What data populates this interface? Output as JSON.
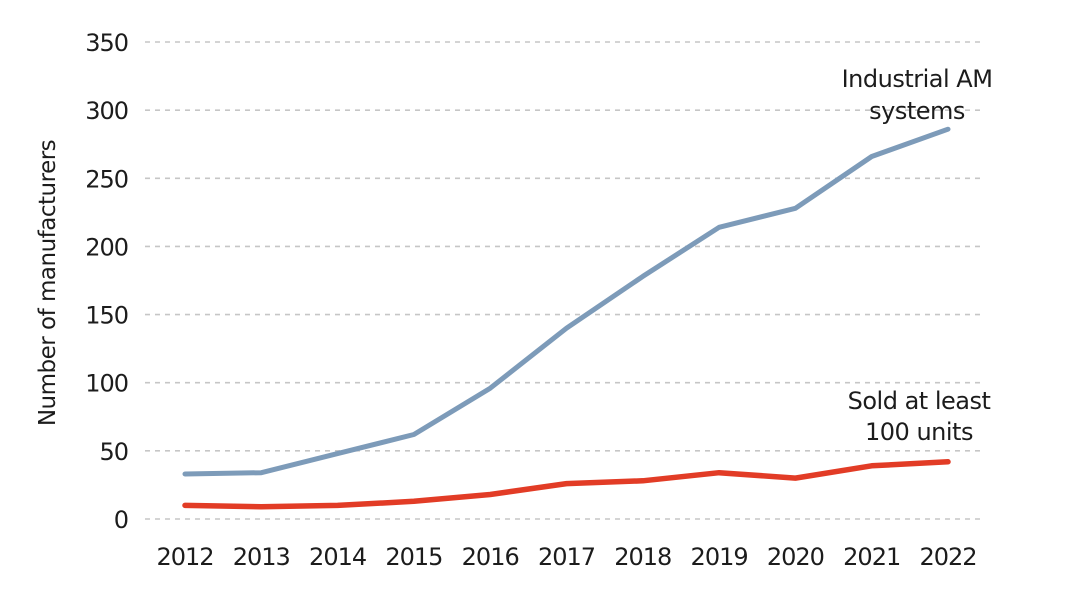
{
  "chart_data": {
    "type": "line",
    "title": "",
    "xlabel": "",
    "ylabel": "Number of manufacturers",
    "x": [
      "2012",
      "2013",
      "2014",
      "2015",
      "2016",
      "2017",
      "2018",
      "2019",
      "2020",
      "2021",
      "2022"
    ],
    "ylim": [
      0,
      350
    ],
    "yticks": [
      0,
      50,
      100,
      150,
      200,
      250,
      300,
      350
    ],
    "grid": "horizontal dashed gridlines only, no solid axis lines",
    "legend_position": "inline text annotations near line ends (no legend box)",
    "series": [
      {
        "name": "Industrial AM systems",
        "color": "#7d9bb9",
        "values": [
          33,
          34,
          48,
          62,
          96,
          140,
          178,
          214,
          228,
          266,
          286
        ]
      },
      {
        "name": "Sold at least 100 units",
        "color": "#e23c26",
        "values": [
          10,
          9,
          10,
          13,
          18,
          26,
          28,
          34,
          30,
          39,
          42
        ]
      }
    ]
  },
  "annotations": {
    "industrial": {
      "line1": "Industrial AM",
      "line2": "systems"
    },
    "sold": {
      "line1": "Sold at least",
      "line2": "100 units"
    }
  },
  "colors": {
    "background": "#ffffff",
    "text": "#1c1c1c",
    "gridline": "#c6c6c6",
    "industrial_line": "#7d9bb9",
    "sold_line": "#e23c26"
  }
}
